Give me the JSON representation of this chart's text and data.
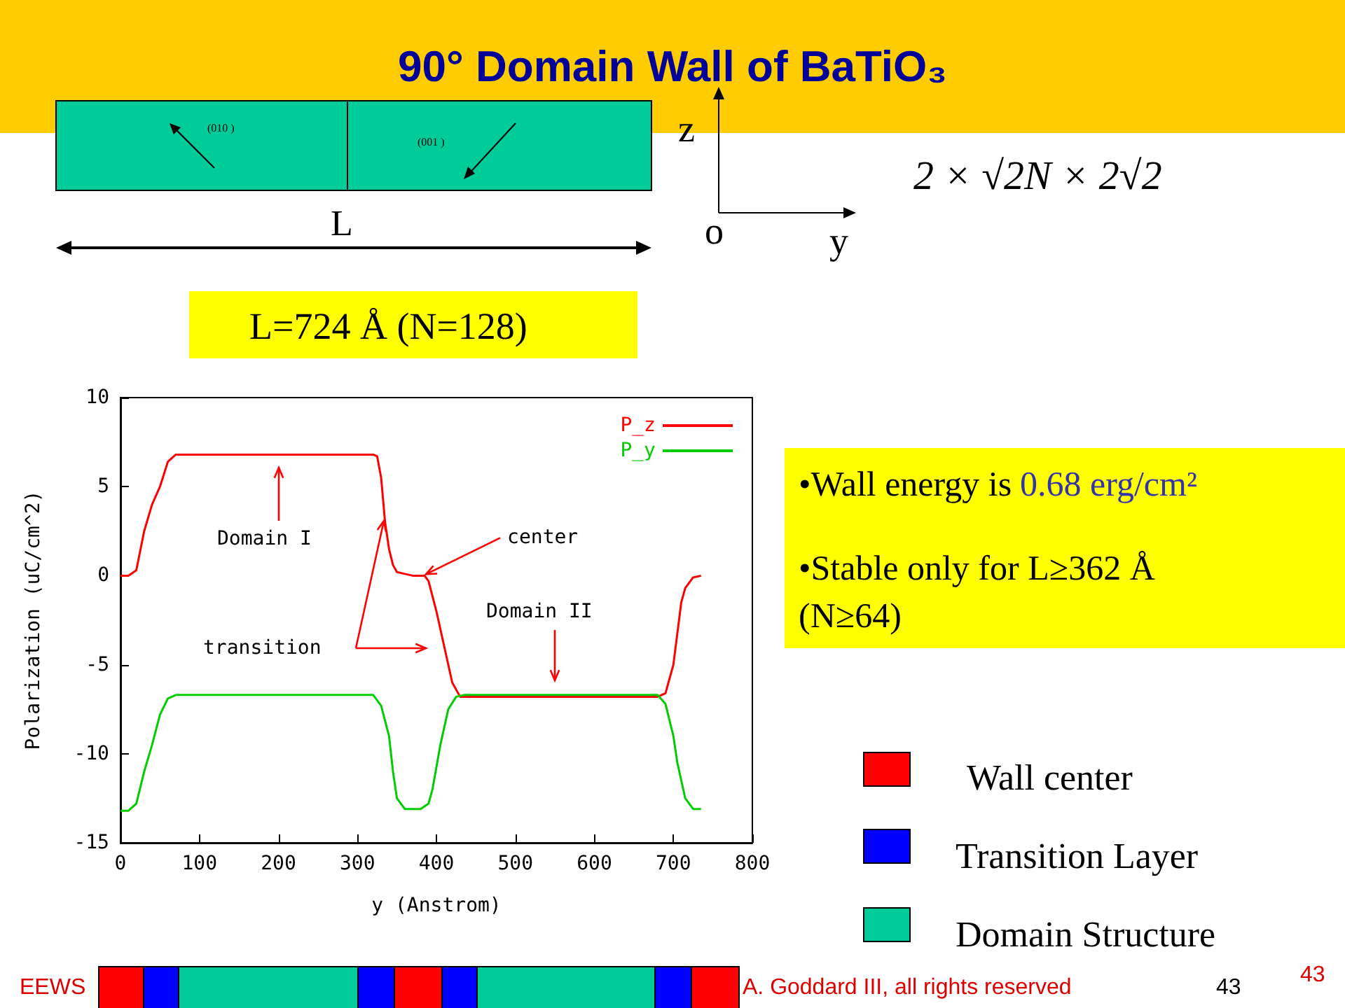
{
  "chart_data": {
    "type": "line",
    "title": "90° Domain Wall of BaTiO₃",
    "xlabel": "y (Anstrom)",
    "ylabel": "Polarization (uC/cm^2)",
    "x": [
      0,
      10,
      20,
      30,
      40,
      50,
      60,
      70,
      320,
      325,
      330,
      335,
      340,
      345,
      350,
      360,
      370,
      385,
      390,
      400,
      410,
      420,
      430,
      680,
      690,
      700,
      710,
      715,
      725,
      735
    ],
    "series": [
      {
        "name": "P_z",
        "color": "#ff0000",
        "values": [
          0,
          0,
          0.3,
          2.5,
          4,
          5,
          6.4,
          6.8,
          6.8,
          6.7,
          5.5,
          3,
          1.5,
          0.6,
          0.2,
          0.1,
          0,
          0,
          -0.3,
          -2,
          -4,
          -6,
          -6.8,
          -6.8,
          -6.6,
          -5,
          -1.5,
          -0.7,
          -0.1,
          0
        ]
      },
      {
        "name": "P_y",
        "color": "#00cc00",
        "x": [
          0,
          10,
          20,
          30,
          40,
          50,
          60,
          70,
          320,
          330,
          340,
          345,
          350,
          360,
          380,
          390,
          395,
          405,
          415,
          425,
          435,
          680,
          690,
          700,
          705,
          715,
          725,
          735
        ],
        "values": [
          -13.2,
          -13.2,
          -12.8,
          -11,
          -9.5,
          -7.8,
          -6.9,
          -6.7,
          -6.7,
          -7.3,
          -9,
          -11,
          -12.5,
          -13.1,
          -13.1,
          -12.8,
          -12,
          -9.5,
          -7.5,
          -6.8,
          -6.7,
          -6.7,
          -7.2,
          -9,
          -10.5,
          -12.5,
          -13.1,
          -13.1
        ]
      }
    ],
    "xlim": [
      0,
      800
    ],
    "xticks": [
      0,
      100,
      200,
      300,
      400,
      500,
      600,
      700,
      800
    ],
    "ylim": [
      -15,
      10
    ],
    "yticks": [
      -15,
      -10,
      -5,
      0,
      5,
      10
    ],
    "grid": false,
    "legend": "top right",
    "annotations": [
      "Domain I",
      {
        "text": "center",
        "x": 385,
        "y": 0
      },
      "transition",
      "Domain II",
      "(010  )",
      "(001  )",
      "L",
      "z",
      "o",
      "y",
      "2 × √2N × 2√2",
      "L=724 Å (N=128)",
      "•Wall energy is",
      "0.68 erg/cm²",
      "•Stable only for L≥362 Å (N≥64)",
      "Wall center",
      "Transition Layer",
      "Domain Structure",
      "EEWS",
      "A. Goddard III, all rights reserved",
      "43",
      "43"
    ]
  }
}
